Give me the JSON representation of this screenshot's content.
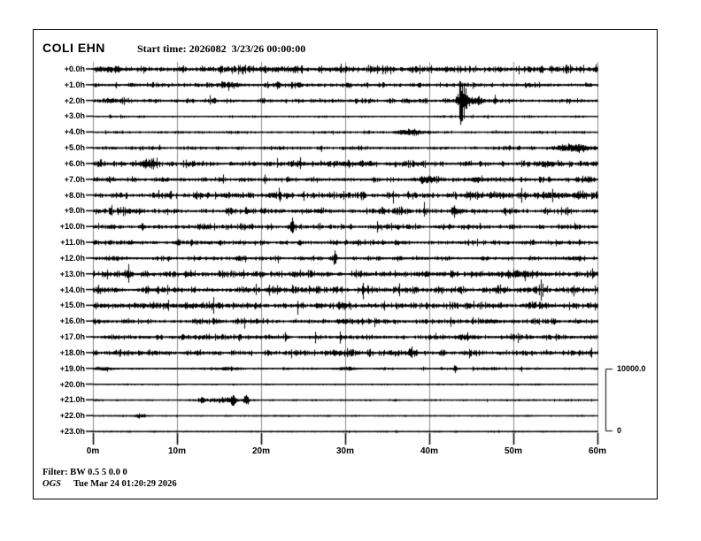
{
  "header": {
    "title": "COLI EHN",
    "start_time_label": "Start time: 2026082  3/23/26 00:00:00"
  },
  "footer": {
    "filter": "Filter: BW 0.5 5 0.0 0",
    "org": "OGS",
    "timestamp": "Tue Mar 24 01:20:29 2026"
  },
  "scale_bar": {
    "max": "10000.0",
    "min": "0"
  },
  "colors": {
    "trace": "#000000",
    "gridline": "#8c8c8c",
    "border": "#000000",
    "tick": "#000000"
  },
  "chart_data": {
    "type": "line",
    "subtype": "helicorder-seismogram",
    "station": "COLI EHN",
    "start_time": "2026082 3/23/26 00:00:00",
    "x_ticks": [
      "0m",
      "10m",
      "20m",
      "30m",
      "40m",
      "50m",
      "60m"
    ],
    "x_range_minutes": [
      0,
      60
    ],
    "minutes_per_row": 60,
    "amplitude_scale_counts": [
      0,
      10000.0
    ],
    "legend_position": "right-bracket",
    "grid": "vertical-10min",
    "rows": [
      {
        "label": "+0.0h",
        "noise": 2.4,
        "events": [
          {
            "t": 2,
            "w": 3,
            "a": 1.2
          },
          {
            "t": 20,
            "w": 2,
            "a": 0.8
          },
          {
            "t": 40,
            "w": 3,
            "a": 0.8
          }
        ]
      },
      {
        "label": "+1.0h",
        "noise": 1.4,
        "events": [
          {
            "t": 16,
            "w": 0.8,
            "a": 4
          },
          {
            "t": 22,
            "w": 0.5,
            "a": 3
          },
          {
            "t": 24.5,
            "w": 0.4,
            "a": 2.5
          }
        ]
      },
      {
        "label": "+2.0h",
        "noise": 1.4,
        "events": [
          {
            "t": 44,
            "w": 0.7,
            "a": 20
          },
          {
            "t": 43.8,
            "w": 0.22,
            "a": 27
          },
          {
            "t": 45.6,
            "w": 0.8,
            "a": 4.5
          },
          {
            "t": 2.5,
            "w": 1.5,
            "a": 1.3
          }
        ]
      },
      {
        "label": "+3.0h",
        "noise": 0.55,
        "events": [
          {
            "t": 2,
            "w": 0.15,
            "a": 3.5
          }
        ]
      },
      {
        "label": "+4.0h",
        "noise": 0.75,
        "events": [
          {
            "t": 38,
            "w": 1.5,
            "a": 3
          },
          {
            "t": 36.5,
            "w": 0.6,
            "a": 2
          }
        ]
      },
      {
        "label": "+5.0h",
        "noise": 1.1,
        "events": [
          {
            "t": 56.5,
            "w": 1.2,
            "a": 5.5
          },
          {
            "t": 58.3,
            "w": 0.8,
            "a": 3
          }
        ]
      },
      {
        "label": "+6.0h",
        "noise": 2.0,
        "events": [
          {
            "t": 6.5,
            "w": 0.8,
            "a": 5
          },
          {
            "t": 30,
            "w": 5,
            "a": 0.7
          }
        ]
      },
      {
        "label": "+7.0h",
        "noise": 1.7,
        "events": [
          {
            "t": 40,
            "w": 1.2,
            "a": 3.5
          },
          {
            "t": 46,
            "w": 1.5,
            "a": 1.8
          }
        ]
      },
      {
        "label": "+8.0h",
        "noise": 2.3,
        "events": [
          {
            "t": 55,
            "w": 3,
            "a": 2.2
          },
          {
            "t": 48,
            "w": 1,
            "a": 1.4
          }
        ]
      },
      {
        "label": "+9.0h",
        "noise": 2.3,
        "events": [
          {
            "t": 43,
            "w": 0.4,
            "a": 5
          }
        ]
      },
      {
        "label": "+10.0h",
        "noise": 1.9,
        "events": [
          {
            "t": 23.7,
            "w": 0.14,
            "a": 15
          },
          {
            "t": 23.7,
            "w": 0.5,
            "a": 4
          }
        ]
      },
      {
        "label": "+11.0h",
        "noise": 1.7,
        "events": [
          {
            "t": 10,
            "w": 0.3,
            "a": 3
          }
        ]
      },
      {
        "label": "+12.0h",
        "noise": 1.4,
        "events": [
          {
            "t": 28.7,
            "w": 0.3,
            "a": 5
          },
          {
            "t": 28.7,
            "w": 0.1,
            "a": 8
          }
        ]
      },
      {
        "label": "+13.0h",
        "noise": 2.3,
        "events": [
          {
            "t": 51,
            "w": 2,
            "a": 2.8
          },
          {
            "t": 40,
            "w": 1,
            "a": 1.8
          }
        ]
      },
      {
        "label": "+14.0h",
        "noise": 2.4,
        "events": []
      },
      {
        "label": "+15.0h",
        "noise": 2.4,
        "events": [
          {
            "t": 10,
            "w": 5,
            "a": 0.9
          },
          {
            "t": 27,
            "w": 0.3,
            "a": 3
          }
        ]
      },
      {
        "label": "+16.0h",
        "noise": 1.7,
        "events": [
          {
            "t": 48,
            "w": 1.5,
            "a": 1.4
          }
        ]
      },
      {
        "label": "+17.0h",
        "noise": 1.7,
        "events": [
          {
            "t": 44,
            "w": 0.8,
            "a": 3
          },
          {
            "t": 20,
            "w": 1,
            "a": 1.4
          }
        ]
      },
      {
        "label": "+18.0h",
        "noise": 2.1,
        "events": [
          {
            "t": 38,
            "w": 0.5,
            "a": 2.5
          },
          {
            "t": 30,
            "w": 2,
            "a": 1.4
          }
        ]
      },
      {
        "label": "+19.0h",
        "noise": 0.65,
        "events": [
          {
            "t": 1,
            "w": 1.2,
            "a": 2.2
          },
          {
            "t": 16,
            "w": 1,
            "a": 2.5
          },
          {
            "t": 30,
            "w": 1.5,
            "a": 1.2
          },
          {
            "t": 43,
            "w": 0.2,
            "a": 5.5
          },
          {
            "t": 47,
            "w": 1,
            "a": 0.9
          }
        ]
      },
      {
        "label": "+20.0h",
        "noise": 0.4,
        "events": []
      },
      {
        "label": "+21.0h",
        "noise": 0.5,
        "events": [
          {
            "t": 15.5,
            "w": 2.2,
            "a": 3
          },
          {
            "t": 16.6,
            "w": 0.3,
            "a": 7
          },
          {
            "t": 18.2,
            "w": 0.25,
            "a": 8
          },
          {
            "t": 13,
            "w": 0.5,
            "a": 2
          }
        ]
      },
      {
        "label": "+22.0h",
        "noise": 0.4,
        "events": [
          {
            "t": 5.6,
            "w": 0.5,
            "a": 3.5
          }
        ]
      },
      {
        "label": "+23.0h",
        "noise": 0.35,
        "events": []
      }
    ]
  }
}
